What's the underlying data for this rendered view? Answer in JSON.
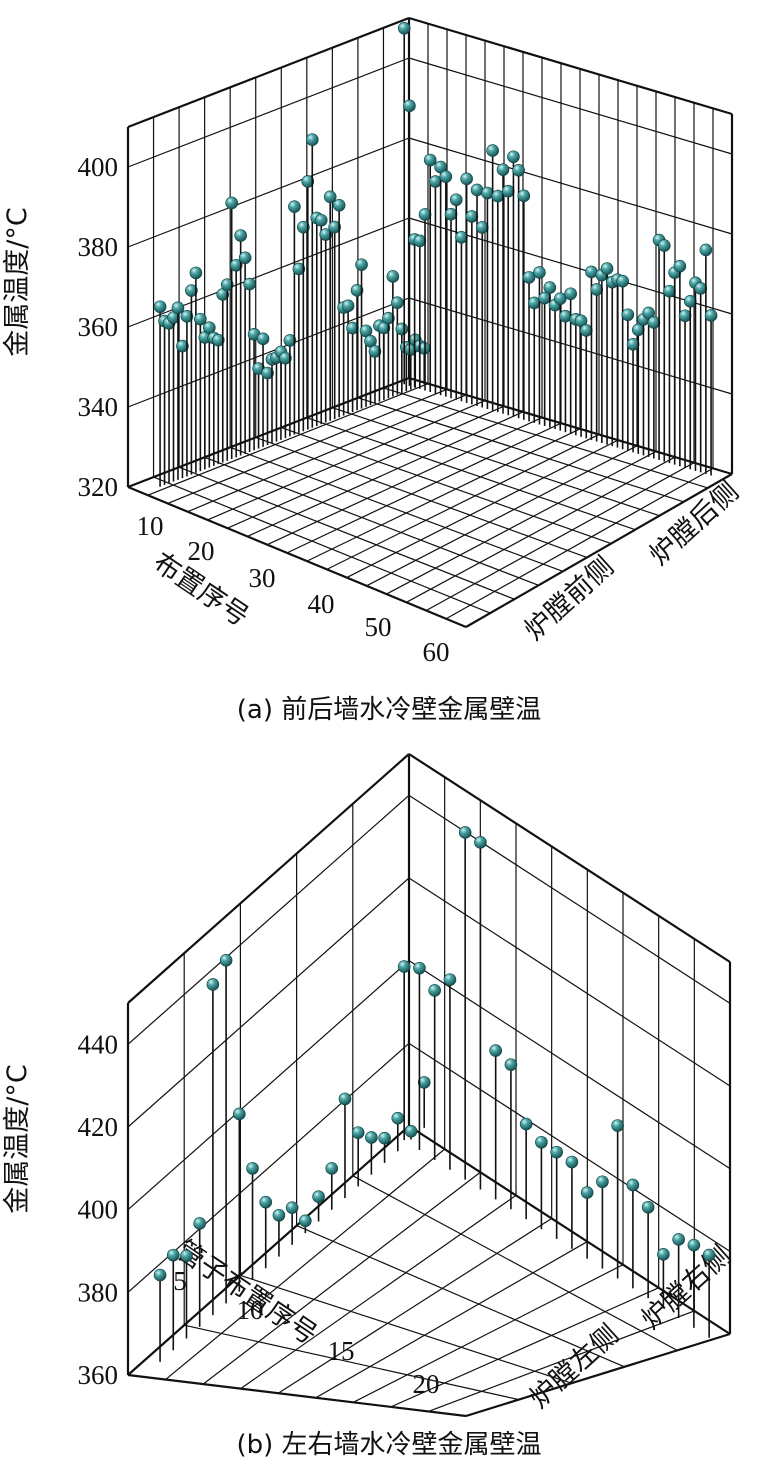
{
  "chart_data": [
    {
      "type": "scatter",
      "subtype": "3d-stem",
      "caption": "(a) 前后墙水冷壁金属壁温",
      "zlabel": "金属温度/°C",
      "xlabel": "布置序号",
      "zlim": [
        320,
        410
      ],
      "zticks": [
        320,
        340,
        360,
        380,
        400
      ],
      "xticks": [
        10,
        20,
        30,
        40,
        50,
        60
      ],
      "yticks": [
        "炉膛前侧",
        "炉膛后侧"
      ],
      "grid": true,
      "marker_color": "#2f8a8c",
      "series": [
        {
          "name": "炉膛前侧",
          "x": [
            1,
            2,
            3,
            4,
            5,
            6,
            7,
            8,
            9,
            10,
            11,
            12,
            13,
            14,
            15,
            16,
            17,
            18,
            19,
            20,
            21,
            22,
            23,
            24,
            25,
            26,
            27,
            28,
            29,
            30,
            31,
            32,
            33,
            34,
            35,
            36,
            37,
            38,
            39,
            40,
            41,
            42,
            43,
            44,
            45,
            46,
            47,
            48,
            49,
            50,
            51,
            52,
            53,
            54,
            55,
            56,
            57,
            58,
            59,
            60
          ],
          "values": [
            365,
            361,
            360,
            361,
            363,
            353,
            360,
            366,
            370,
            358,
            353,
            355,
            352,
            351,
            362,
            364,
            384,
            368,
            375,
            369,
            362,
            349,
            340,
            347,
            338,
            341,
            341,
            342,
            340,
            344,
            377,
            361,
            371,
            382,
            392,
            372,
            371,
            367,
            376,
            368,
            373,
            347,
            347,
            341,
            350,
            356,
            339,
            336,
            333,
            339,
            338,
            340,
            350,
            343,
            336,
            331,
            330,
            332,
            330,
            329
          ]
        },
        {
          "name": "炉膛后侧",
          "x": [
            1,
            2,
            3,
            4,
            5,
            6,
            7,
            8,
            9,
            10,
            11,
            12,
            13,
            14,
            15,
            16,
            17,
            18,
            19,
            20,
            21,
            22,
            23,
            24,
            25,
            26,
            27,
            28,
            29,
            30,
            31,
            32,
            33,
            34,
            35,
            36,
            37,
            38,
            39,
            40,
            41,
            42,
            43,
            44,
            45,
            46,
            47,
            48,
            49,
            50,
            51,
            52,
            53,
            54,
            55,
            56,
            57,
            58,
            59,
            60
          ],
          "values": [
            409,
            390,
            357,
            357,
            364,
            378,
            373,
            377,
            375,
            366,
            370,
            361,
            376,
            367,
            374,
            365,
            374,
            385,
            374,
            381,
            376,
            385,
            382,
            376,
            356,
            350,
            358,
            352,
            355,
            351,
            353,
            349,
            355,
            349,
            349,
            347,
            362,
            358,
            362,
            364,
            361,
            362,
            362,
            354,
            347,
            351,
            354,
            356,
            354,
            375,
            374,
            363,
            368,
            370,
            358,
            362,
            367,
            366,
            376,
            360
          ]
        }
      ]
    },
    {
      "type": "scatter",
      "subtype": "3d-stem",
      "caption": "(b) 左右墙水冷壁金属壁温",
      "zlabel": "金属温度/°C",
      "xlabel": "管子布置序号",
      "zlim": [
        360,
        450
      ],
      "zticks": [
        360,
        380,
        400,
        420,
        440
      ],
      "xticks": [
        5,
        10,
        15,
        20
      ],
      "yticks": [
        "炉膛左侧",
        "炉膛右侧"
      ],
      "grid": true,
      "marker_color": "#2f8a8c",
      "series": [
        {
          "name": "炉膛左侧",
          "x": [
            1,
            2,
            3,
            4,
            5,
            6,
            7,
            8,
            9,
            10,
            11,
            12,
            13,
            14,
            15,
            16,
            17,
            18,
            19,
            20,
            21
          ],
          "values": [
            381,
            383,
            380,
            385,
            440,
            443,
            403,
            387,
            376,
            370,
            369,
            363,
            366,
            370,
            384,
            373,
            369,
            366,
            368,
            362,
            371
          ]
        },
        {
          "name": "炉膛右侧",
          "x": [
            1,
            2,
            3,
            4,
            5,
            6,
            7,
            8,
            9,
            10,
            11,
            12,
            13,
            14,
            15,
            16,
            17,
            18,
            19,
            20,
            21
          ],
          "values": [
            402,
            404,
            401,
            406,
            444,
            444,
            396,
            395,
            383,
            381,
            381,
            381,
            376,
            381,
            397,
            385,
            382,
            373,
            379,
            380,
            380
          ]
        }
      ]
    }
  ]
}
